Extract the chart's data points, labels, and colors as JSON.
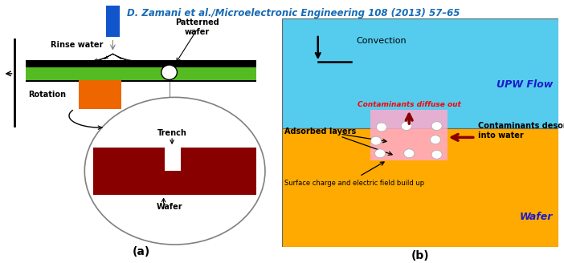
{
  "title": "D. Zamani et al./Microelectronic Engineering 108 (2013) 57–65",
  "title_color": "#1a6bb5",
  "title_fontsize": 8.5,
  "bg_color": "#ffffff",
  "panel_a_label": "(a)",
  "panel_b_label": "(b)",
  "upw_color": "#55ccee",
  "wafer_color": "#ffaa00",
  "trench_block_color": "#880000",
  "nozzle_color": "#1155cc",
  "green_wafer_color": "#55bb22",
  "orange_block_color": "#ee6600",
  "pink_trench_color": "#ffaacc",
  "arrow_dark_red": "#880000"
}
